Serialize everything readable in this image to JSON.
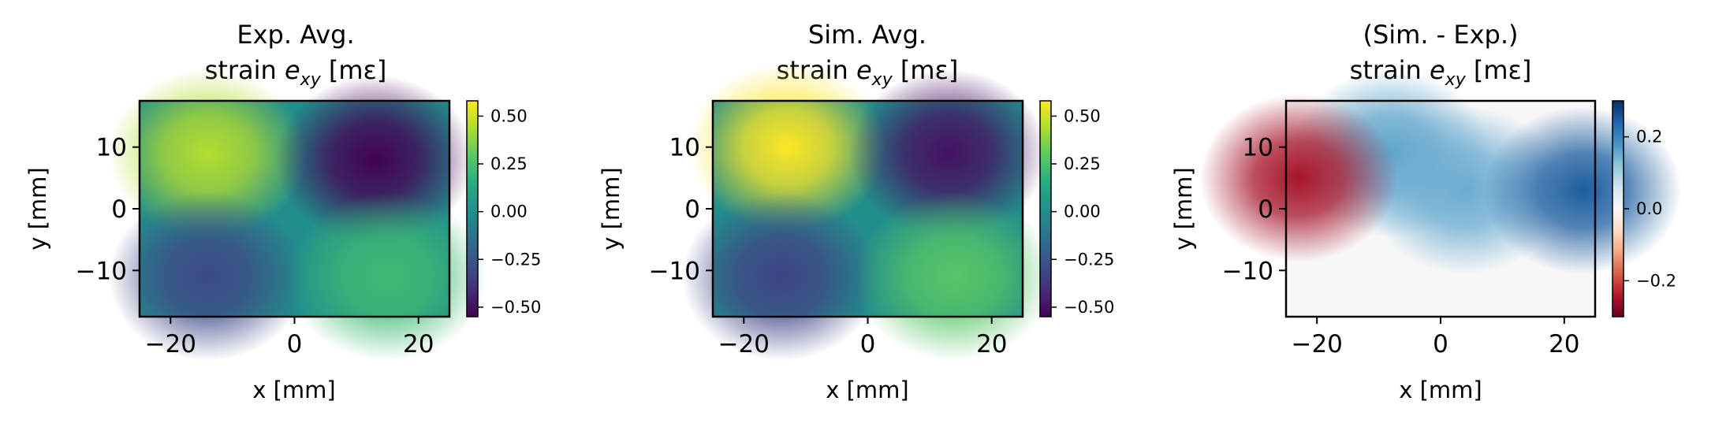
{
  "chart_data": [
    {
      "type": "heatmap",
      "title_line1": "Exp. Avg.",
      "title_line2_prefix": "strain ",
      "title_symbol": "e",
      "title_subscript": "xy",
      "title_unit": "[mε]",
      "xlabel": "x [mm]",
      "ylabel": "y [mm]",
      "xlim": [
        -25,
        25
      ],
      "ylim": [
        -17.5,
        17.5
      ],
      "xticks": [
        -20,
        0,
        20
      ],
      "yticks": [
        -10,
        0,
        10
      ],
      "xtick_labels": [
        "−20",
        "0",
        "20"
      ],
      "ytick_labels": [
        "−10",
        "0",
        "10"
      ],
      "colormap": "viridis",
      "colorbar_range": [
        -0.55,
        0.58
      ],
      "colorbar_ticks": [
        -0.5,
        -0.25,
        0,
        0.25,
        0.5
      ],
      "colorbar_tick_labels": [
        "−0.50",
        "−0.25",
        "0.00",
        "0.25",
        "0.50"
      ],
      "features": [
        {
          "x": -14,
          "y": 9,
          "value": 0.45
        },
        {
          "x": 13,
          "y": 8,
          "value": -0.55
        },
        {
          "x": -14,
          "y": -11,
          "value": -0.3
        },
        {
          "x": 15,
          "y": -11,
          "value": 0.22
        }
      ]
    },
    {
      "type": "heatmap",
      "title_line1": "Sim. Avg.",
      "title_line2_prefix": "strain ",
      "title_symbol": "e",
      "title_subscript": "xy",
      "title_unit": "[mε]",
      "xlabel": "x [mm]",
      "ylabel": "y [mm]",
      "xlim": [
        -25,
        25
      ],
      "ylim": [
        -17.5,
        17.5
      ],
      "xticks": [
        -20,
        0,
        20
      ],
      "yticks": [
        -10,
        0,
        10
      ],
      "xtick_labels": [
        "−20",
        "0",
        "20"
      ],
      "ytick_labels": [
        "−10",
        "0",
        "10"
      ],
      "colormap": "viridis",
      "colorbar_range": [
        -0.55,
        0.58
      ],
      "colorbar_ticks": [
        -0.5,
        -0.25,
        0,
        0.25,
        0.5
      ],
      "colorbar_tick_labels": [
        "−0.50",
        "−0.25",
        "0.00",
        "0.25",
        "0.50"
      ],
      "features": [
        {
          "x": -13,
          "y": 10,
          "value": 0.58
        },
        {
          "x": 13,
          "y": 9,
          "value": -0.5
        },
        {
          "x": -14,
          "y": -11,
          "value": -0.32
        },
        {
          "x": 14,
          "y": -11,
          "value": 0.28
        }
      ]
    },
    {
      "type": "heatmap",
      "title_line1": "(Sim. - Exp.)",
      "title_line2_prefix": "strain ",
      "title_symbol": "e",
      "title_subscript": "xy",
      "title_unit": "[mε]",
      "xlabel": "x [mm]",
      "ylabel": "y [mm]",
      "xlim": [
        -25,
        25
      ],
      "ylim": [
        -17.5,
        17.5
      ],
      "xticks": [
        -20,
        0,
        20
      ],
      "yticks": [
        -10,
        0,
        10
      ],
      "xtick_labels": [
        "−20",
        "0",
        "20"
      ],
      "ytick_labels": [
        "−10",
        "0",
        "10"
      ],
      "colormap": "RdBu",
      "colorbar_range": [
        -0.3,
        0.3
      ],
      "colorbar_ticks": [
        -0.2,
        0,
        0.2
      ],
      "colorbar_tick_labels": [
        "−0.2",
        "0.0",
        "0.2"
      ],
      "features": [
        {
          "x": -8,
          "y": 9,
          "value": 0.16
        },
        {
          "x": 4,
          "y": 3,
          "value": 0.15
        },
        {
          "x": 23,
          "y": 3,
          "value": 0.25
        },
        {
          "x": -23,
          "y": 5,
          "value": -0.25
        }
      ]
    }
  ]
}
